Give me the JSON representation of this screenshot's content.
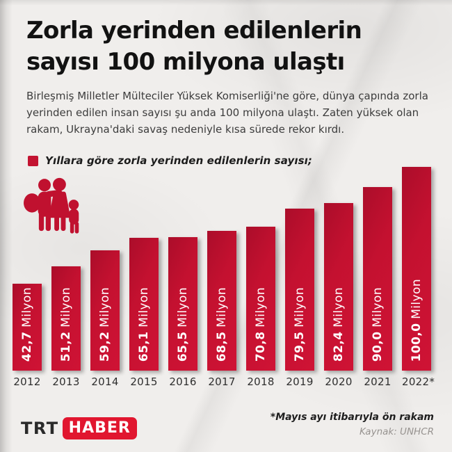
{
  "title": {
    "line1": "Zorla yerinden edilenlerin",
    "line2": "sayısı 100 milyona ulaştı"
  },
  "intro": {
    "text": "Birleşmiş Milletler Mülteciler Yüksek Komiserliği'ne göre, dünya çapında zorla yerinden edilen insan sayısı şu anda 100 milyona ulaştı. Zaten yüksek olan rakam, Ukrayna'daki savaş nedeniyle kısa sürede rekor kırdı."
  },
  "chart_data": {
    "type": "bar",
    "title": "Yıllara göre zorla yerinden edilenlerin sayısı;",
    "legend_position": "top-left",
    "grid": false,
    "categories": [
      "2012",
      "2013",
      "2014",
      "2015",
      "2016",
      "2017",
      "2018",
      "2019",
      "2020",
      "2021",
      "2022*"
    ],
    "values": [
      42.7,
      51.2,
      59.2,
      65.1,
      65.5,
      68.5,
      70.8,
      79.5,
      82.4,
      90.0,
      100.0
    ],
    "display_values": [
      "42,7",
      "51,2",
      "59,2",
      "65,1",
      "65,5",
      "68,5",
      "70,8",
      "79,5",
      "82,4",
      "90,0",
      "100,0"
    ],
    "unit": "Milyon",
    "xlabel": "",
    "ylabel": "",
    "ylim": [
      0,
      100
    ],
    "bar_color": "#c31331",
    "label_color": "#ffffff"
  },
  "icons": {
    "family_icon_color": "#c0112f"
  },
  "footer": {
    "logo_trt": "TRT",
    "logo_haber": "HABER",
    "note": "*Mayıs ayı itibarıyla ön rakam",
    "source": "Kaynak: UNHCR"
  },
  "colors": {
    "accent_red": "#c31331",
    "logo_red": "#e1162f",
    "paper": "#f0eeec",
    "title_text": "#121212",
    "body_text": "#3c3c3c",
    "source_gray": "#979390"
  }
}
